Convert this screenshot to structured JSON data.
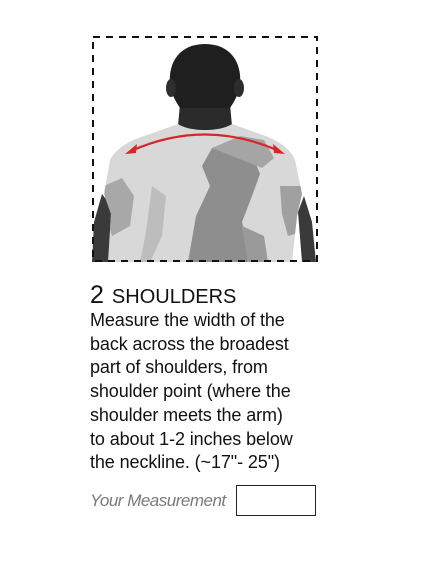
{
  "step": {
    "number": "2",
    "title": "SHOULDERS",
    "instruction_lines": [
      "Measure the width of the",
      "back across the broadest",
      "part of shoulders, from",
      "shoulder point (where the",
      "shoulder meets the arm)",
      "to about 1-2 inches below",
      "the neckline. (~17\"- 25\")"
    ]
  },
  "measurement": {
    "label": "Your Measurement",
    "value": ""
  },
  "illustration": {
    "icon": "shoulder-measurement-illustration",
    "arrow_color": "#d7262a",
    "frame_style": "dashed"
  }
}
